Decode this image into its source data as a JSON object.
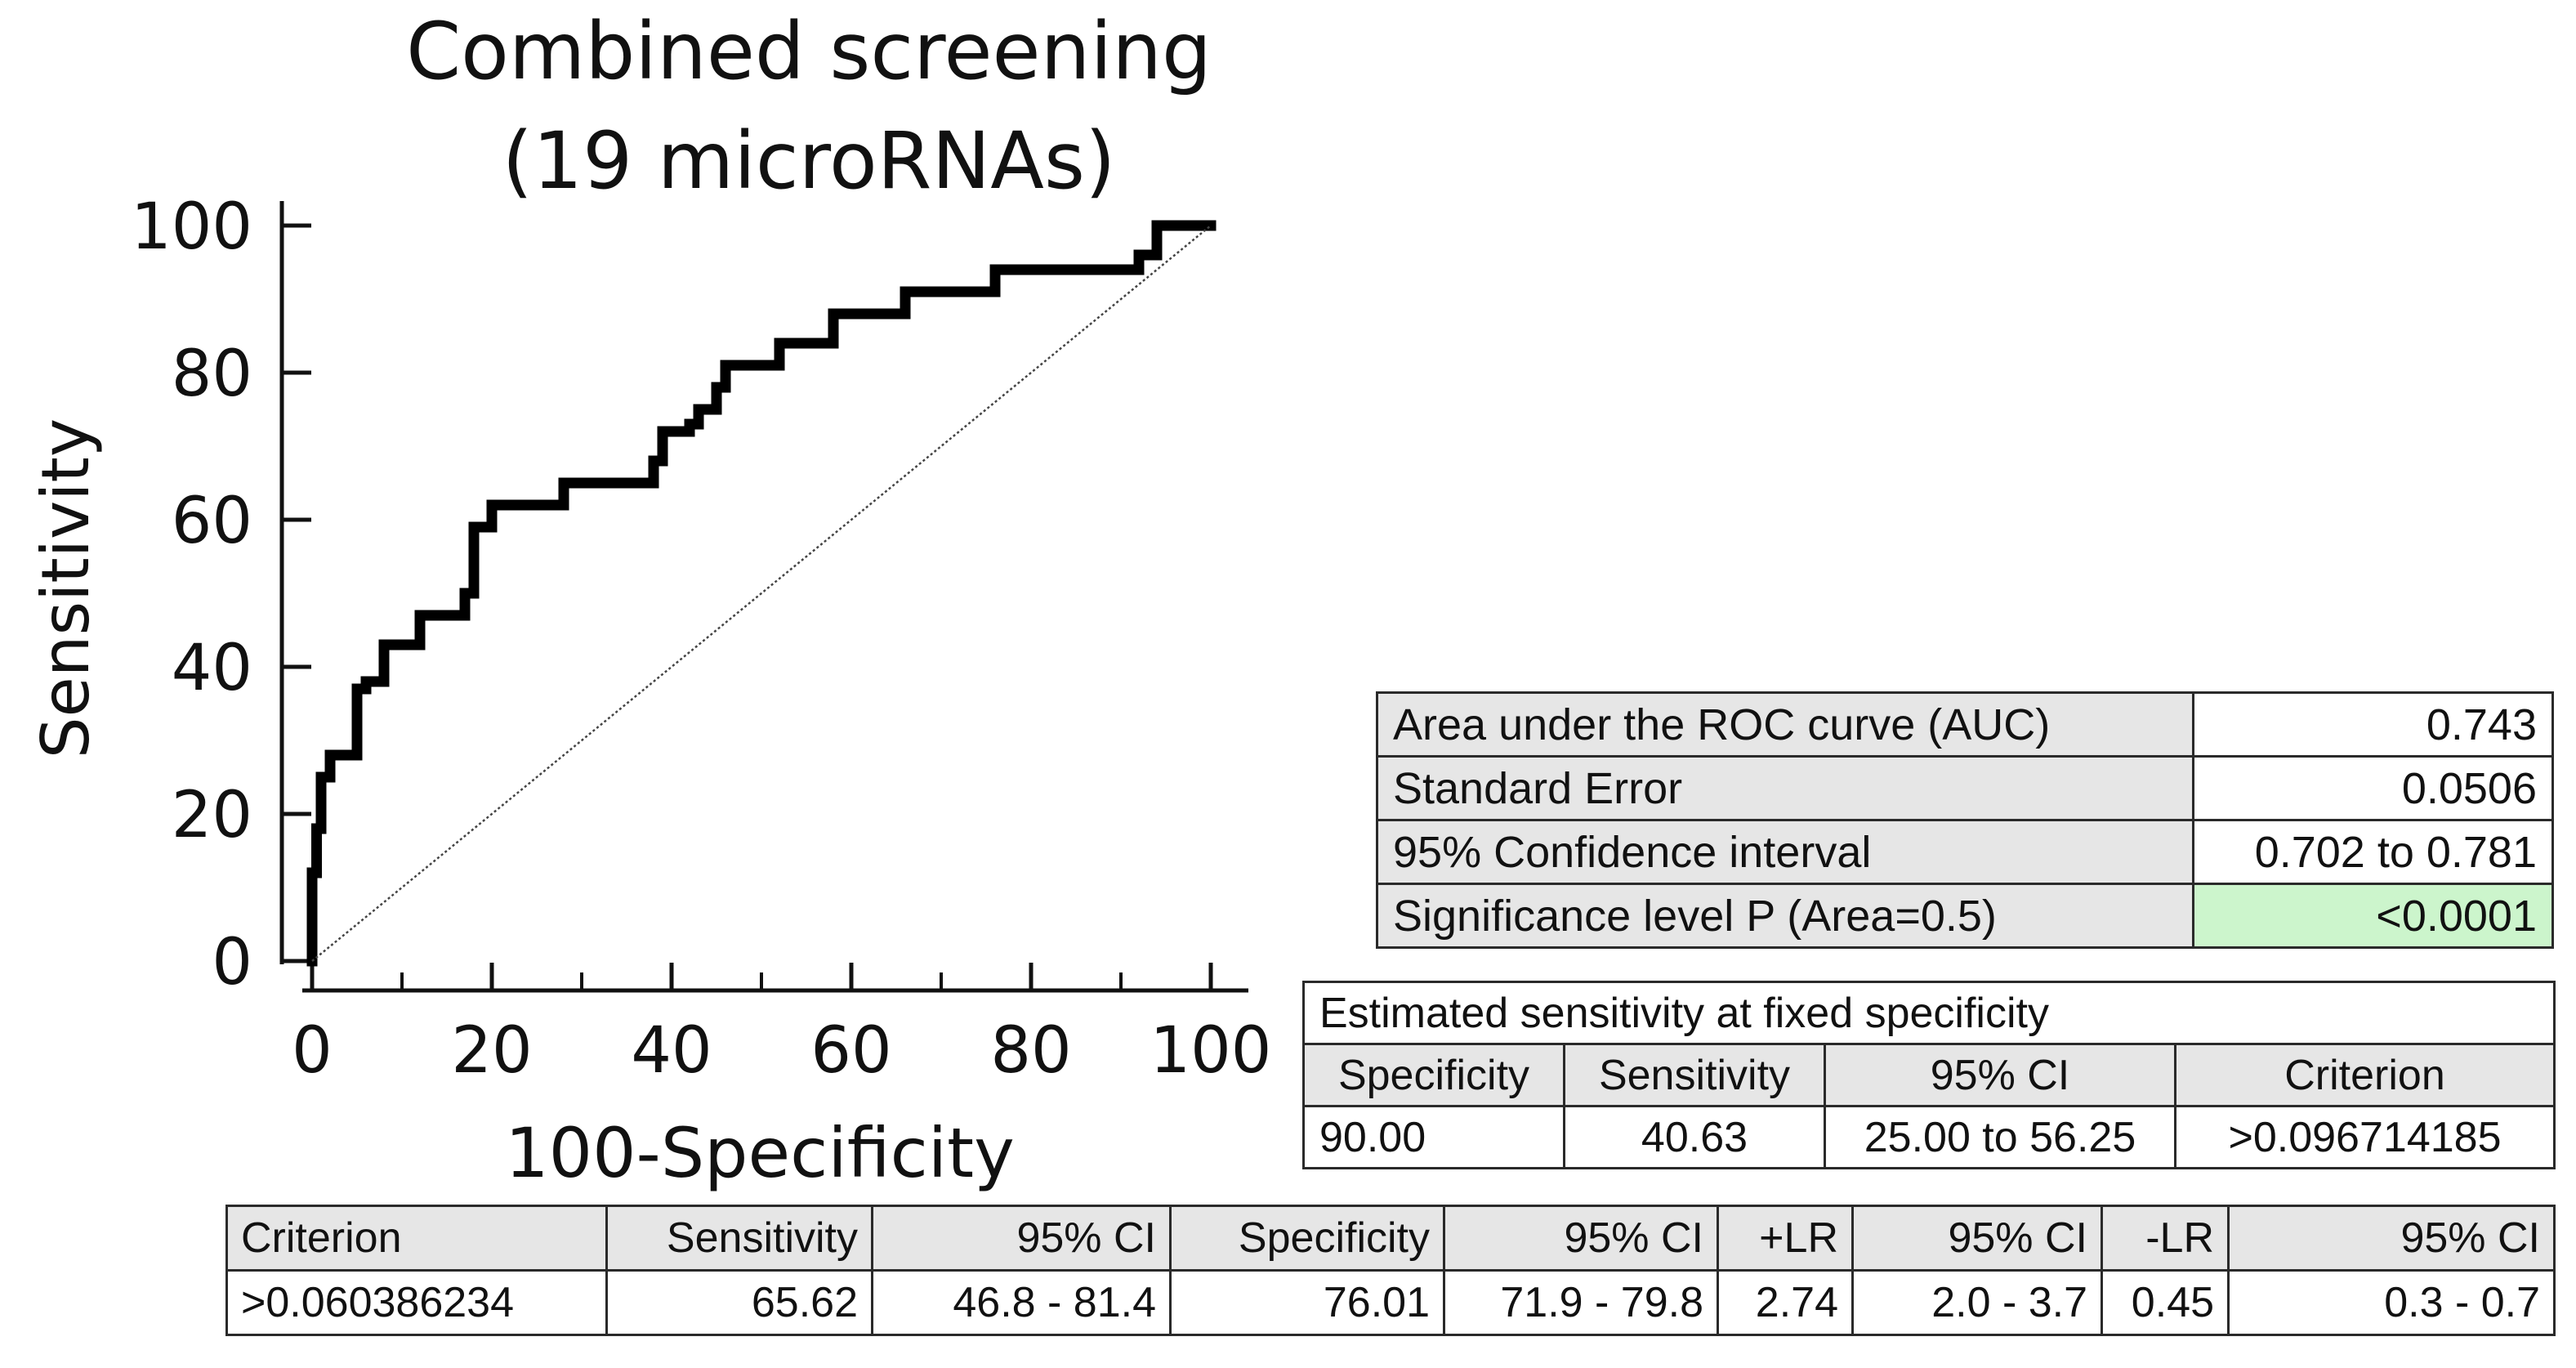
{
  "chart_data": {
    "type": "line",
    "title": "Combined screening\n(19 microRNAs)",
    "title_lines": [
      "Combined screening",
      "(19 microRNAs)"
    ],
    "xlabel": "100-Specificity",
    "ylabel": "Sensitivity",
    "xlim": [
      0,
      100
    ],
    "ylim": [
      0,
      100
    ],
    "xticks": [
      0,
      20,
      40,
      60,
      80,
      100
    ],
    "yticks": [
      0,
      20,
      40,
      60,
      80,
      100
    ],
    "grid": false,
    "series": [
      {
        "style": "thick-step",
        "x": [
          0,
          0,
          0.5,
          0.5,
          1,
          1,
          2,
          2,
          5,
          5,
          6,
          6,
          8,
          8,
          12,
          12,
          17,
          17,
          18,
          18,
          20,
          20,
          28,
          28,
          38,
          38,
          39,
          39,
          42,
          42,
          43,
          43,
          45,
          45,
          46,
          46,
          52,
          52,
          58,
          58,
          66,
          66,
          76,
          76,
          92,
          92,
          94,
          94,
          100
        ],
        "y": [
          0,
          12,
          12,
          18,
          18,
          25,
          25,
          28,
          28,
          37,
          37,
          38,
          38,
          43,
          43,
          47,
          47,
          50,
          50,
          59,
          59,
          62,
          62,
          65,
          65,
          68,
          68,
          72,
          72,
          73,
          73,
          75,
          75,
          78,
          78,
          81,
          81,
          84,
          84,
          88,
          88,
          91,
          91,
          94,
          94,
          96,
          96,
          100,
          100
        ]
      },
      {
        "style": "dotted-diagonal",
        "x": [
          0,
          100
        ],
        "y": [
          0,
          100
        ]
      }
    ]
  },
  "stats_table": {
    "rows": [
      {
        "label": "Area under the ROC curve (AUC)",
        "value": "0.743"
      },
      {
        "label": "Standard Error",
        "value": "0.0506"
      },
      {
        "label": "95% Confidence interval",
        "value": "0.702 to 0.781"
      },
      {
        "label": "Significance level P (Area=0.5)",
        "value": "<0.0001"
      }
    ],
    "highlight_color": "#ccf5cc"
  },
  "fixed_specificity_table": {
    "title": "Estimated sensitivity at fixed specificity",
    "headers": [
      "Specificity",
      "Sensitivity",
      "95% CI",
      "Criterion"
    ],
    "row": [
      "90.00",
      "40.63",
      "25.00 to 56.25",
      ">0.096714185"
    ]
  },
  "criterion_table": {
    "headers": [
      "Criterion",
      "Sensitivity",
      "95% CI",
      "Specificity",
      "95% CI",
      "+LR",
      "95% CI",
      "-LR",
      "95% CI"
    ],
    "row": [
      ">0.060386234",
      "65.62",
      "46.8 - 81.4",
      "76.01",
      "71.9 - 79.8",
      "2.74",
      "2.0 - 3.7",
      "0.45",
      "0.3 - 0.7"
    ]
  }
}
